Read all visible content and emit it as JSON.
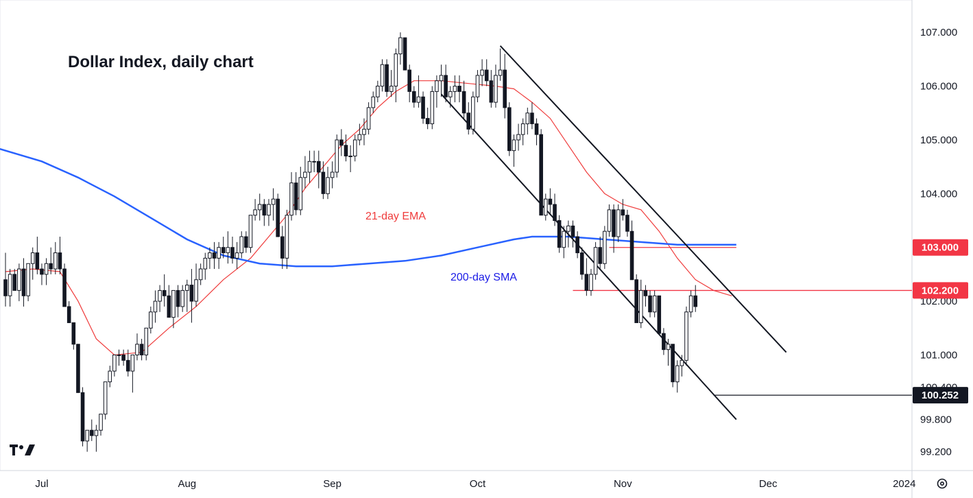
{
  "chart_data": {
    "type": "candlestick",
    "title": "Dollar Index, daily chart",
    "y_range": [
      98.85,
      107.5
    ],
    "y_ticks": [
      {
        "value": 107.0,
        "label": "107.000"
      },
      {
        "value": 106.0,
        "label": "106.000"
      },
      {
        "value": 105.0,
        "label": "105.000"
      },
      {
        "value": 104.0,
        "label": "104.000"
      },
      {
        "value": 102.0,
        "label": "102.000"
      },
      {
        "value": 101.0,
        "label": "101.000"
      },
      {
        "value": 100.4,
        "label": "100.400"
      },
      {
        "value": 99.8,
        "label": "99.800"
      },
      {
        "value": 99.2,
        "label": "99.200"
      }
    ],
    "x_ticks": [
      {
        "index": 8,
        "label": "Jul"
      },
      {
        "index": 40,
        "label": "Aug"
      },
      {
        "index": 72,
        "label": "Sep"
      },
      {
        "index": 104,
        "label": "Oct"
      },
      {
        "index": 136,
        "label": "Nov"
      },
      {
        "index": 168,
        "label": "Dec"
      },
      {
        "index": 198,
        "label": "2024"
      }
    ],
    "candles": [
      [
        102.4,
        102.9,
        101.9,
        102.1
      ],
      [
        102.1,
        102.6,
        101.9,
        102.5
      ],
      [
        102.5,
        102.6,
        102.2,
        102.2
      ],
      [
        102.2,
        102.7,
        102.0,
        102.6
      ],
      [
        102.6,
        102.8,
        101.9,
        102.1
      ],
      [
        102.1,
        102.7,
        102.0,
        102.7
      ],
      [
        102.7,
        103.0,
        102.4,
        102.9
      ],
      [
        102.9,
        103.2,
        102.5,
        102.6
      ],
      [
        102.6,
        102.7,
        102.3,
        102.5
      ],
      [
        102.5,
        102.8,
        102.3,
        102.7
      ],
      [
        102.7,
        103.0,
        102.5,
        102.6
      ],
      [
        102.6,
        103.1,
        102.5,
        102.9
      ],
      [
        102.9,
        103.2,
        102.5,
        102.6
      ],
      [
        102.6,
        102.7,
        101.9,
        101.9
      ],
      [
        101.9,
        102.0,
        101.6,
        101.6
      ],
      [
        101.6,
        101.6,
        101.1,
        101.2
      ],
      [
        101.2,
        101.2,
        100.3,
        100.3
      ],
      [
        100.3,
        100.4,
        99.3,
        99.4
      ],
      [
        99.4,
        99.6,
        99.2,
        99.6
      ],
      [
        99.6,
        99.8,
        99.4,
        99.5
      ],
      [
        99.5,
        99.7,
        99.2,
        99.6
      ],
      [
        99.6,
        99.9,
        99.5,
        99.9
      ],
      [
        99.9,
        100.5,
        99.8,
        100.5
      ],
      [
        100.5,
        100.8,
        100.4,
        100.7
      ],
      [
        100.7,
        101.0,
        100.6,
        101.0
      ],
      [
        101.0,
        101.1,
        100.8,
        101.0
      ],
      [
        101.0,
        101.1,
        100.8,
        100.9
      ],
      [
        100.9,
        101.1,
        100.6,
        100.7
      ],
      [
        100.7,
        101.0,
        100.3,
        101.0
      ],
      [
        101.0,
        101.4,
        100.9,
        101.2
      ],
      [
        101.2,
        101.3,
        100.9,
        101.0
      ],
      [
        101.0,
        101.5,
        100.9,
        101.5
      ],
      [
        101.5,
        101.9,
        101.4,
        101.8
      ],
      [
        101.8,
        102.2,
        101.6,
        102.0
      ],
      [
        102.0,
        102.3,
        101.8,
        102.2
      ],
      [
        102.2,
        102.5,
        101.9,
        102.1
      ],
      [
        102.1,
        102.3,
        101.7,
        101.7
      ],
      [
        101.7,
        102.2,
        101.5,
        102.2
      ],
      [
        102.2,
        102.3,
        101.7,
        101.9
      ],
      [
        101.9,
        102.3,
        101.8,
        102.2
      ],
      [
        102.2,
        102.4,
        101.8,
        102.3
      ],
      [
        102.3,
        102.6,
        101.6,
        102.0
      ],
      [
        102.0,
        102.7,
        101.9,
        102.4
      ],
      [
        102.4,
        102.7,
        102.3,
        102.6
      ],
      [
        102.6,
        102.9,
        102.4,
        102.8
      ],
      [
        102.8,
        103.0,
        102.6,
        102.9
      ],
      [
        102.9,
        103.1,
        102.6,
        102.8
      ],
      [
        102.8,
        103.1,
        102.6,
        103.0
      ],
      [
        103.0,
        103.2,
        102.8,
        102.9
      ],
      [
        102.9,
        103.3,
        102.7,
        103.0
      ],
      [
        103.0,
        103.2,
        102.7,
        102.8
      ],
      [
        102.8,
        103.1,
        102.6,
        102.9
      ],
      [
        102.9,
        103.3,
        102.8,
        103.2
      ],
      [
        103.2,
        103.3,
        102.9,
        103.0
      ],
      [
        103.0,
        103.6,
        102.9,
        103.6
      ],
      [
        103.6,
        103.9,
        103.5,
        103.7
      ],
      [
        103.7,
        104.0,
        103.5,
        103.8
      ],
      [
        103.8,
        103.9,
        103.4,
        103.6
      ],
      [
        103.6,
        103.9,
        103.4,
        103.8
      ],
      [
        103.8,
        104.1,
        103.5,
        103.9
      ],
      [
        103.9,
        104.0,
        103.2,
        103.2
      ],
      [
        103.2,
        103.4,
        102.6,
        102.8
      ],
      [
        102.8,
        103.7,
        102.6,
        103.6
      ],
      [
        103.6,
        104.4,
        103.5,
        104.2
      ],
      [
        104.2,
        104.4,
        103.6,
        103.7
      ],
      [
        103.7,
        104.5,
        103.6,
        104.3
      ],
      [
        104.3,
        104.7,
        104.1,
        104.4
      ],
      [
        104.4,
        104.8,
        104.2,
        104.6
      ],
      [
        104.6,
        104.8,
        104.4,
        104.6
      ],
      [
        104.6,
        104.8,
        104.1,
        104.4
      ],
      [
        104.4,
        104.6,
        103.9,
        104.0
      ],
      [
        104.0,
        104.5,
        103.9,
        104.3
      ],
      [
        104.3,
        104.6,
        104.1,
        104.4
      ],
      [
        104.4,
        105.1,
        104.3,
        105.0
      ],
      [
        105.0,
        105.2,
        104.7,
        104.9
      ],
      [
        104.9,
        105.1,
        104.6,
        104.7
      ],
      [
        104.7,
        104.9,
        104.4,
        104.7
      ],
      [
        104.7,
        105.1,
        104.6,
        105.0
      ],
      [
        105.0,
        105.3,
        104.9,
        105.1
      ],
      [
        105.1,
        105.4,
        104.9,
        105.2
      ],
      [
        105.2,
        105.7,
        105.1,
        105.6
      ],
      [
        105.6,
        105.9,
        105.5,
        105.8
      ],
      [
        105.8,
        106.1,
        105.7,
        106.0
      ],
      [
        106.0,
        106.5,
        105.9,
        106.4
      ],
      [
        106.4,
        106.5,
        105.8,
        105.9
      ],
      [
        105.9,
        106.3,
        105.8,
        106.0
      ],
      [
        106.0,
        106.7,
        105.7,
        106.6
      ],
      [
        106.6,
        107.0,
        106.4,
        106.9
      ],
      [
        106.9,
        106.9,
        106.3,
        106.3
      ],
      [
        106.3,
        106.4,
        105.7,
        105.9
      ],
      [
        105.9,
        106.0,
        105.6,
        105.7
      ],
      [
        105.7,
        106.2,
        105.6,
        105.8
      ],
      [
        105.8,
        105.9,
        105.3,
        105.4
      ],
      [
        105.4,
        105.6,
        105.2,
        105.3
      ],
      [
        105.3,
        106.0,
        105.2,
        105.9
      ],
      [
        105.9,
        106.2,
        105.6,
        106.1
      ],
      [
        106.1,
        106.4,
        105.8,
        106.2
      ],
      [
        106.2,
        106.4,
        105.7,
        105.8
      ],
      [
        105.8,
        106.0,
        105.6,
        105.9
      ],
      [
        105.9,
        106.2,
        105.7,
        106.0
      ],
      [
        106.0,
        106.2,
        105.7,
        105.9
      ],
      [
        105.9,
        106.1,
        105.4,
        105.5
      ],
      [
        105.5,
        105.7,
        105.1,
        105.2
      ],
      [
        105.2,
        105.9,
        105.1,
        105.8
      ],
      [
        105.8,
        106.3,
        105.7,
        106.2
      ],
      [
        106.2,
        106.5,
        106.0,
        106.3
      ],
      [
        106.3,
        106.5,
        106.0,
        106.1
      ],
      [
        106.1,
        106.3,
        105.6,
        105.7
      ],
      [
        105.7,
        106.4,
        105.6,
        106.2
      ],
      [
        106.2,
        106.7,
        106.1,
        106.3
      ],
      [
        106.3,
        106.6,
        105.4,
        105.6
      ],
      [
        105.6,
        105.7,
        104.7,
        104.8
      ],
      [
        104.8,
        105.1,
        104.5,
        105.0
      ],
      [
        105.0,
        105.3,
        104.8,
        105.1
      ],
      [
        105.1,
        105.4,
        104.9,
        105.3
      ],
      [
        105.3,
        105.6,
        105.1,
        105.5
      ],
      [
        105.5,
        105.7,
        105.2,
        105.3
      ],
      [
        105.3,
        105.4,
        104.9,
        105.1
      ],
      [
        105.1,
        105.2,
        103.6,
        103.6
      ],
      [
        103.6,
        104.0,
        103.5,
        103.9
      ],
      [
        103.9,
        104.1,
        103.6,
        103.8
      ],
      [
        103.8,
        104.0,
        103.4,
        103.5
      ],
      [
        103.5,
        103.6,
        102.9,
        103.0
      ],
      [
        103.0,
        103.4,
        102.8,
        103.3
      ],
      [
        103.3,
        103.5,
        103.0,
        103.4
      ],
      [
        103.4,
        103.5,
        103.0,
        103.2
      ],
      [
        103.2,
        103.3,
        102.8,
        102.9
      ],
      [
        102.9,
        103.0,
        102.4,
        102.5
      ],
      [
        102.5,
        102.8,
        102.1,
        102.2
      ],
      [
        102.2,
        102.6,
        102.1,
        102.5
      ],
      [
        102.5,
        103.1,
        102.4,
        103.0
      ],
      [
        103.0,
        103.2,
        102.6,
        102.7
      ],
      [
        102.7,
        103.4,
        102.6,
        103.3
      ],
      [
        103.3,
        103.8,
        103.2,
        103.7
      ],
      [
        103.7,
        103.8,
        102.9,
        103.2
      ],
      [
        103.2,
        103.8,
        103.1,
        103.7
      ],
      [
        103.7,
        103.9,
        103.5,
        103.6
      ],
      [
        103.6,
        103.7,
        103.2,
        103.3
      ],
      [
        103.3,
        103.5,
        102.4,
        102.4
      ],
      [
        102.4,
        102.5,
        101.6,
        101.6
      ],
      [
        101.6,
        102.4,
        101.5,
        102.2
      ],
      [
        102.2,
        102.3,
        101.9,
        102.1
      ],
      [
        102.1,
        102.2,
        101.7,
        101.8
      ],
      [
        101.8,
        102.2,
        101.7,
        102.1
      ],
      [
        102.1,
        102.1,
        101.4,
        101.4
      ],
      [
        101.4,
        101.5,
        101.0,
        101.1
      ],
      [
        101.1,
        101.3,
        100.8,
        101.2
      ],
      [
        101.2,
        101.2,
        100.4,
        100.5
      ],
      [
        100.5,
        100.9,
        100.3,
        100.8
      ],
      [
        100.8,
        101.0,
        100.6,
        100.9
      ],
      [
        100.9,
        101.9,
        100.8,
        101.8
      ],
      [
        101.8,
        102.2,
        101.7,
        102.1
      ],
      [
        102.1,
        102.3,
        101.8,
        101.9
      ]
    ],
    "series": [
      {
        "name": "21-day EMA",
        "color": "#ef3b3b",
        "points": [
          [
            0,
            102.55
          ],
          [
            6,
            102.6
          ],
          [
            12,
            102.55
          ],
          [
            16,
            102.0
          ],
          [
            20,
            101.3
          ],
          [
            24,
            101.0
          ],
          [
            30,
            101.05
          ],
          [
            36,
            101.5
          ],
          [
            42,
            101.9
          ],
          [
            48,
            102.4
          ],
          [
            54,
            102.8
          ],
          [
            58,
            103.2
          ],
          [
            62,
            103.6
          ],
          [
            66,
            104.1
          ],
          [
            70,
            104.5
          ],
          [
            74,
            104.9
          ],
          [
            78,
            105.2
          ],
          [
            82,
            105.6
          ],
          [
            86,
            105.9
          ],
          [
            90,
            106.1
          ],
          [
            96,
            106.1
          ],
          [
            102,
            106.05
          ],
          [
            108,
            106.0
          ],
          [
            112,
            105.95
          ],
          [
            116,
            105.7
          ],
          [
            120,
            105.4
          ],
          [
            124,
            104.9
          ],
          [
            128,
            104.4
          ],
          [
            132,
            104.0
          ],
          [
            136,
            103.8
          ],
          [
            140,
            103.7
          ],
          [
            144,
            103.3
          ],
          [
            148,
            102.8
          ],
          [
            152,
            102.4
          ],
          [
            156,
            102.2
          ],
          [
            160,
            102.1
          ]
        ]
      },
      {
        "name": "200-day SMA",
        "color": "#2962ff",
        "points": [
          [
            -2,
            104.85
          ],
          [
            8,
            104.6
          ],
          [
            16,
            104.3
          ],
          [
            24,
            103.95
          ],
          [
            32,
            103.55
          ],
          [
            40,
            103.15
          ],
          [
            48,
            102.85
          ],
          [
            56,
            102.7
          ],
          [
            64,
            102.65
          ],
          [
            72,
            102.65
          ],
          [
            80,
            102.7
          ],
          [
            88,
            102.75
          ],
          [
            96,
            102.85
          ],
          [
            104,
            103.0
          ],
          [
            112,
            103.15
          ],
          [
            116,
            103.2
          ],
          [
            124,
            103.2
          ],
          [
            132,
            103.15
          ],
          [
            140,
            103.1
          ],
          [
            148,
            103.05
          ],
          [
            156,
            103.05
          ],
          [
            161,
            103.05
          ]
        ]
      }
    ],
    "hlines": [
      {
        "value": 103.0,
        "label": "103.000",
        "color": "#f23645",
        "from_index": 133,
        "to_index": 161
      },
      {
        "value": 102.2,
        "label": "102.200",
        "color": "#f23645",
        "from_index": 125,
        "to_index": 200
      },
      {
        "value": 100.252,
        "label": "100.252",
        "color": "#131722",
        "from_index": 156,
        "to_index": 200
      }
    ],
    "trendlines": [
      {
        "name": "channel-upper-line",
        "from": [
          109,
          106.75
        ],
        "to": [
          172,
          101.05
        ]
      },
      {
        "name": "channel-lower-line",
        "from": [
          96,
          105.85
        ],
        "to": [
          161,
          99.8
        ]
      }
    ],
    "annotations": [
      {
        "text": "21-day EMA",
        "color": "#ef3b3b"
      },
      {
        "text": "200-day SMA",
        "color": "#1a1ae6"
      }
    ]
  }
}
